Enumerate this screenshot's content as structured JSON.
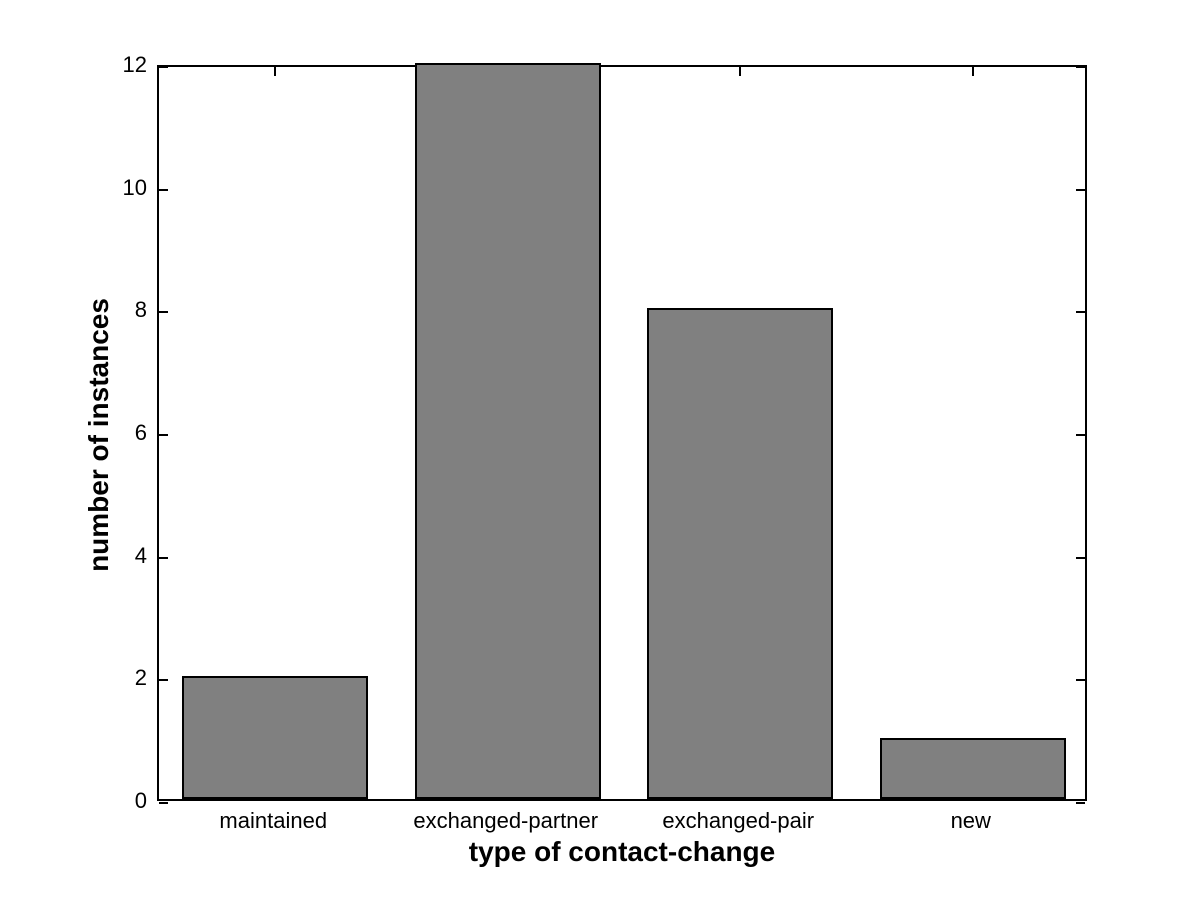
{
  "figure": {
    "background": "#ffffff"
  },
  "chart_data": {
    "type": "bar",
    "categories": [
      "maintained",
      "exchanged-partner",
      "exchanged-pair",
      "new"
    ],
    "values": [
      2,
      12,
      8,
      1
    ],
    "title": "",
    "xlabel": "type of contact-change",
    "ylabel": "number of instances",
    "yticks": [
      0,
      2,
      4,
      6,
      8,
      10,
      12
    ],
    "ylim": [
      0,
      12
    ],
    "bar_color": "#808080",
    "bar_edge_color": "#000000",
    "axis_color": "#000000",
    "bar_width_fraction": 0.8,
    "grid": false,
    "legend": null
  }
}
